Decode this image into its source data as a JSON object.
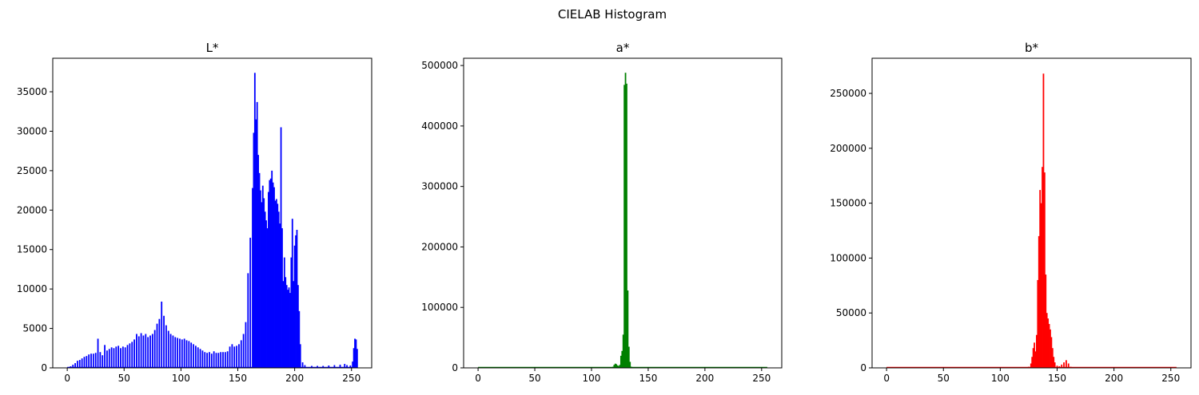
{
  "figure": {
    "title": "CIELAB Histogram"
  },
  "chart_data": [
    {
      "type": "histogram",
      "title": "L*",
      "color": "#0000ff",
      "xlim": [
        -12.75,
        267.75
      ],
      "ylim": [
        0,
        39250
      ],
      "xticks": [
        0,
        50,
        100,
        150,
        200,
        250
      ],
      "yticks": [
        0,
        5000,
        10000,
        15000,
        20000,
        25000,
        30000,
        35000
      ],
      "points": [
        [
          0,
          0
        ],
        [
          3,
          200
        ],
        [
          5,
          400
        ],
        [
          7,
          600
        ],
        [
          9,
          900
        ],
        [
          11,
          1000
        ],
        [
          13,
          1200
        ],
        [
          15,
          1400
        ],
        [
          17,
          1500
        ],
        [
          19,
          1700
        ],
        [
          21,
          1800
        ],
        [
          23,
          1800
        ],
        [
          25,
          1900
        ],
        [
          27,
          3700
        ],
        [
          29,
          2000
        ],
        [
          31,
          1600
        ],
        [
          33,
          2900
        ],
        [
          35,
          2200
        ],
        [
          37,
          2400
        ],
        [
          39,
          2600
        ],
        [
          41,
          2500
        ],
        [
          43,
          2700
        ],
        [
          45,
          2800
        ],
        [
          47,
          2500
        ],
        [
          49,
          2700
        ],
        [
          51,
          2600
        ],
        [
          53,
          2900
        ],
        [
          55,
          3100
        ],
        [
          57,
          3300
        ],
        [
          59,
          3600
        ],
        [
          61,
          4300
        ],
        [
          63,
          4000
        ],
        [
          65,
          4400
        ],
        [
          67,
          4100
        ],
        [
          69,
          4300
        ],
        [
          71,
          3900
        ],
        [
          73,
          4100
        ],
        [
          75,
          4300
        ],
        [
          77,
          4800
        ],
        [
          79,
          5600
        ],
        [
          81,
          6200
        ],
        [
          83,
          8400
        ],
        [
          85,
          6600
        ],
        [
          87,
          5400
        ],
        [
          89,
          4700
        ],
        [
          91,
          4300
        ],
        [
          93,
          4100
        ],
        [
          95,
          3900
        ],
        [
          97,
          3800
        ],
        [
          99,
          3700
        ],
        [
          101,
          3600
        ],
        [
          103,
          3700
        ],
        [
          105,
          3500
        ],
        [
          107,
          3400
        ],
        [
          109,
          3200
        ],
        [
          111,
          3000
        ],
        [
          113,
          2800
        ],
        [
          115,
          2600
        ],
        [
          117,
          2400
        ],
        [
          119,
          2200
        ],
        [
          121,
          2000
        ],
        [
          123,
          1900
        ],
        [
          125,
          2000
        ],
        [
          127,
          1800
        ],
        [
          129,
          2100
        ],
        [
          131,
          1900
        ],
        [
          133,
          1900
        ],
        [
          135,
          2000
        ],
        [
          137,
          2000
        ],
        [
          139,
          2000
        ],
        [
          141,
          2100
        ],
        [
          143,
          2700
        ],
        [
          145,
          3000
        ],
        [
          147,
          2700
        ],
        [
          149,
          2800
        ],
        [
          151,
          3000
        ],
        [
          153,
          3500
        ],
        [
          155,
          4300
        ],
        [
          157,
          5800
        ],
        [
          159,
          12000
        ],
        [
          161,
          16500
        ],
        [
          163,
          22800
        ],
        [
          164,
          29800
        ],
        [
          165,
          37400
        ],
        [
          166,
          31500
        ],
        [
          167,
          33700
        ],
        [
          168,
          27000
        ],
        [
          169,
          24700
        ],
        [
          170,
          22500
        ],
        [
          171,
          21000
        ],
        [
          172,
          23100
        ],
        [
          173,
          21500
        ],
        [
          174,
          19800
        ],
        [
          175,
          18700
        ],
        [
          176,
          17700
        ],
        [
          177,
          22300
        ],
        [
          178,
          23800
        ],
        [
          179,
          24000
        ],
        [
          180,
          25000
        ],
        [
          181,
          23500
        ],
        [
          182,
          22900
        ],
        [
          183,
          21200
        ],
        [
          184,
          21400
        ],
        [
          185,
          20800
        ],
        [
          186,
          19800
        ],
        [
          187,
          18300
        ],
        [
          188,
          30500
        ],
        [
          189,
          17700
        ],
        [
          190,
          11000
        ],
        [
          191,
          14000
        ],
        [
          192,
          11500
        ],
        [
          193,
          10500
        ],
        [
          194,
          9900
        ],
        [
          195,
          10200
        ],
        [
          196,
          9500
        ],
        [
          197,
          14000
        ],
        [
          198,
          18900
        ],
        [
          199,
          11000
        ],
        [
          200,
          15500
        ],
        [
          201,
          16800
        ],
        [
          202,
          17500
        ],
        [
          203,
          10500
        ],
        [
          204,
          7200
        ],
        [
          205,
          3000
        ],
        [
          207,
          700
        ],
        [
          209,
          350
        ],
        [
          215,
          250
        ],
        [
          220,
          250
        ],
        [
          225,
          250
        ],
        [
          230,
          300
        ],
        [
          235,
          350
        ],
        [
          240,
          400
        ],
        [
          244,
          500
        ],
        [
          246,
          350
        ],
        [
          249,
          300
        ],
        [
          251,
          800
        ],
        [
          252,
          2500
        ],
        [
          253,
          3700
        ],
        [
          254,
          3600
        ],
        [
          255,
          2400
        ]
      ]
    },
    {
      "type": "histogram",
      "title": "a*",
      "color": "#008000",
      "xlim": [
        -12.75,
        267.75
      ],
      "ylim": [
        0,
        512000
      ],
      "xticks": [
        0,
        50,
        100,
        150,
        200,
        250
      ],
      "yticks": [
        0,
        100000,
        200000,
        300000,
        400000,
        500000
      ],
      "points": [
        [
          0,
          0
        ],
        [
          110,
          0
        ],
        [
          118,
          500
        ],
        [
          119,
          2000
        ],
        [
          120,
          5000
        ],
        [
          121,
          7000
        ],
        [
          122,
          6000
        ],
        [
          123,
          4000
        ],
        [
          124,
          3000
        ],
        [
          125,
          5000
        ],
        [
          126,
          20000
        ],
        [
          127,
          28000
        ],
        [
          128,
          55000
        ],
        [
          129,
          468000
        ],
        [
          130,
          488000
        ],
        [
          131,
          470000
        ],
        [
          132,
          128000
        ],
        [
          133,
          35000
        ],
        [
          134,
          10000
        ],
        [
          135,
          2000
        ],
        [
          136,
          500
        ],
        [
          140,
          0
        ],
        [
          255,
          0
        ]
      ]
    },
    {
      "type": "histogram",
      "title": "b*",
      "color": "#ff0000",
      "xlim": [
        -12.75,
        267.75
      ],
      "ylim": [
        0,
        282000
      ],
      "xticks": [
        0,
        50,
        100,
        150,
        200,
        250
      ],
      "yticks": [
        0,
        50000,
        100000,
        150000,
        200000,
        250000
      ],
      "points": [
        [
          0,
          0
        ],
        [
          120,
          0
        ],
        [
          125,
          1000
        ],
        [
          127,
          4000
        ],
        [
          128,
          10000
        ],
        [
          129,
          18000
        ],
        [
          130,
          23000
        ],
        [
          131,
          15000
        ],
        [
          132,
          30000
        ],
        [
          133,
          80000
        ],
        [
          134,
          120000
        ],
        [
          135,
          162000
        ],
        [
          136,
          150000
        ],
        [
          137,
          183000
        ],
        [
          138,
          268000
        ],
        [
          139,
          178000
        ],
        [
          140,
          85000
        ],
        [
          141,
          50000
        ],
        [
          142,
          45000
        ],
        [
          143,
          40000
        ],
        [
          144,
          35000
        ],
        [
          145,
          28000
        ],
        [
          146,
          18000
        ],
        [
          147,
          10000
        ],
        [
          148,
          5000
        ],
        [
          150,
          2000
        ],
        [
          152,
          1500
        ],
        [
          154,
          3000
        ],
        [
          156,
          5000
        ],
        [
          158,
          7000
        ],
        [
          160,
          4000
        ],
        [
          162,
          1000
        ],
        [
          165,
          0
        ],
        [
          255,
          0
        ]
      ]
    }
  ]
}
